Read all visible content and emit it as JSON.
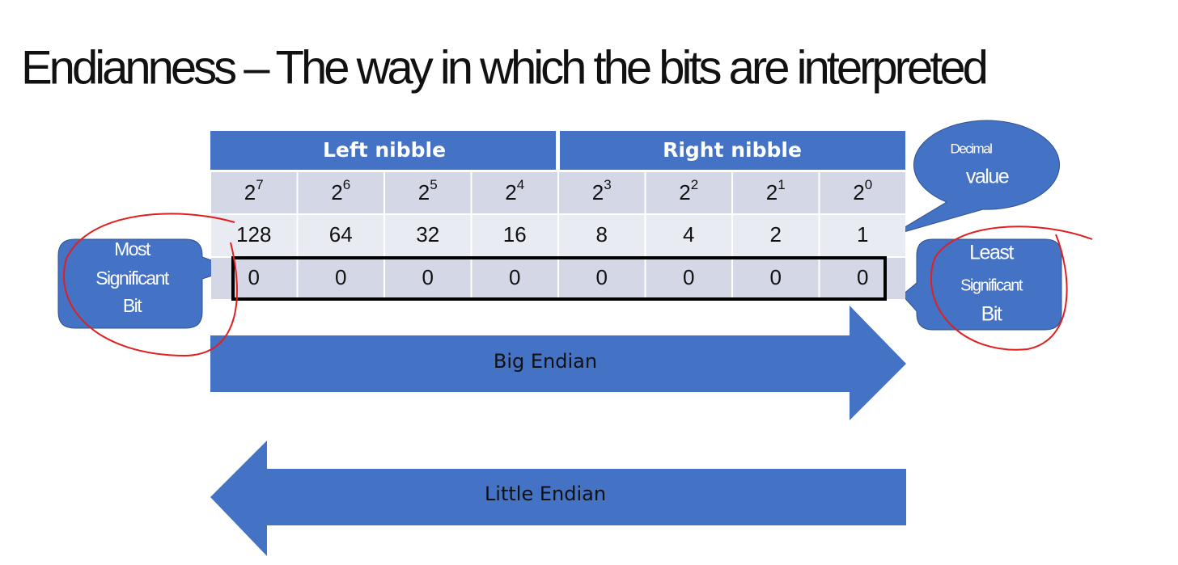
{
  "title": "Endianness – The way in which the bits are interpreted",
  "table": {
    "nibbles": [
      "Left nibble",
      "Right nibble"
    ],
    "powers": [
      {
        "base": "2",
        "exponent": "7"
      },
      {
        "base": "2",
        "exponent": "6"
      },
      {
        "base": "2",
        "exponent": "5"
      },
      {
        "base": "2",
        "exponent": "4"
      },
      {
        "base": "2",
        "exponent": "3"
      },
      {
        "base": "2",
        "exponent": "2"
      },
      {
        "base": "2",
        "exponent": "1"
      },
      {
        "base": "2",
        "exponent": "0"
      }
    ],
    "values": [
      128,
      64,
      32,
      16,
      8,
      4,
      2,
      1
    ],
    "bits": [
      0,
      0,
      0,
      0,
      0,
      0,
      0,
      0
    ]
  },
  "callouts": {
    "msb": {
      "lines": [
        "Most",
        "Significant",
        "Bit"
      ]
    },
    "lsb": {
      "lines": [
        "Least",
        "Significant",
        "Bit"
      ]
    },
    "decimal": {
      "lines": [
        "Decimal",
        "value"
      ]
    }
  },
  "arrows": {
    "big": "Big Endian",
    "little": "Little Endian"
  }
}
